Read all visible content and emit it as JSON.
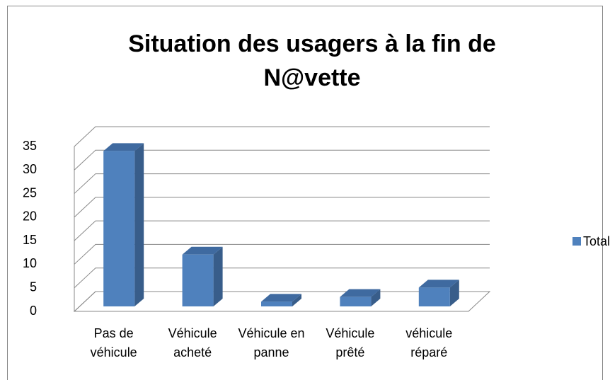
{
  "chart_data": {
    "type": "bar3d",
    "title": "Situation des usagers à la fin de N@vette",
    "categories": [
      "Pas de véhicule",
      "Véhicule acheté",
      "Véhicule en panne",
      "Véhicule prêté",
      "véhicule réparé"
    ],
    "series": [
      {
        "name": "Total",
        "color": "#4f81bd",
        "values": [
          33,
          11,
          1,
          2,
          4
        ]
      }
    ],
    "ylim": [
      0,
      35
    ],
    "yticks": [
      0,
      5,
      10,
      15,
      20,
      25,
      30,
      35
    ],
    "grid": true,
    "legend": "right"
  }
}
